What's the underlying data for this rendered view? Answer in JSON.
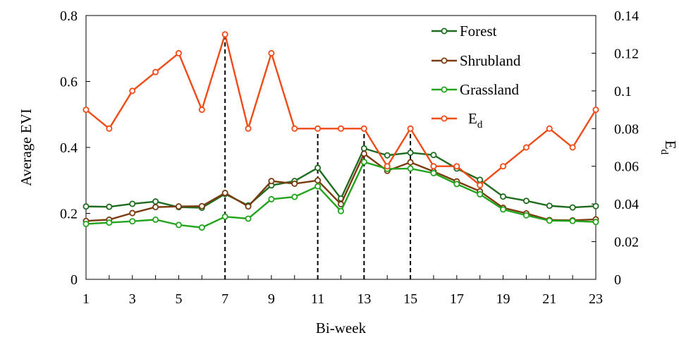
{
  "chart_data": {
    "type": "line",
    "xlabel": "Bi-week",
    "ylabel": "Average EVI",
    "y2label": "E",
    "y2label_sub": "d",
    "x": [
      1,
      2,
      3,
      4,
      5,
      6,
      7,
      8,
      9,
      10,
      11,
      12,
      13,
      14,
      15,
      16,
      17,
      18,
      19,
      20,
      21,
      22,
      23
    ],
    "xticks": [
      1,
      3,
      5,
      7,
      9,
      11,
      13,
      15,
      17,
      19,
      21,
      23
    ],
    "xlim": [
      1,
      23
    ],
    "ylim": [
      0,
      0.8
    ],
    "yticks": [
      0,
      0.2,
      0.4,
      0.6,
      0.8
    ],
    "ytick_labels": [
      "0",
      "0.2",
      "0.4",
      "0.6",
      "0.8"
    ],
    "y2lim": [
      0,
      0.14
    ],
    "y2ticks": [
      0,
      0.02,
      0.04,
      0.06,
      0.08,
      0.1,
      0.12,
      0.14
    ],
    "y2tick_labels": [
      "0",
      "0.02",
      "0.04",
      "0.06",
      "0.08",
      "0.1",
      "0.12",
      "0.14"
    ],
    "legend_position": "top-right",
    "series": [
      {
        "name": "Forest",
        "axis": "left",
        "color": "#1f6b1f",
        "values": [
          0.221,
          0.22,
          0.229,
          0.236,
          0.219,
          0.217,
          0.259,
          0.224,
          0.285,
          0.298,
          0.338,
          0.245,
          0.397,
          0.376,
          0.384,
          0.377,
          0.336,
          0.302,
          0.251,
          0.238,
          0.223,
          0.218,
          0.222
        ]
      },
      {
        "name": "Shrubland",
        "axis": "left",
        "color": "#7a3b10",
        "values": [
          0.177,
          0.181,
          0.201,
          0.219,
          0.221,
          0.222,
          0.262,
          0.221,
          0.298,
          0.29,
          0.3,
          0.228,
          0.381,
          0.329,
          0.355,
          0.327,
          0.297,
          0.267,
          0.217,
          0.2,
          0.18,
          0.179,
          0.182
        ]
      },
      {
        "name": "Grassland",
        "axis": "left",
        "color": "#22a51c",
        "values": [
          0.168,
          0.172,
          0.176,
          0.181,
          0.165,
          0.157,
          0.19,
          0.184,
          0.243,
          0.25,
          0.282,
          0.207,
          0.356,
          0.335,
          0.336,
          0.322,
          0.289,
          0.258,
          0.212,
          0.194,
          0.178,
          0.177,
          0.174
        ]
      },
      {
        "name": "E",
        "name_sub": "d",
        "axis": "right",
        "color": "#f04a16",
        "values": [
          0.09,
          0.08,
          0.1,
          0.11,
          0.12,
          0.09,
          0.13,
          0.08,
          0.12,
          0.08,
          0.08,
          0.08,
          0.08,
          0.06,
          0.08,
          0.06,
          0.06,
          0.05,
          0.06,
          0.07,
          0.08,
          0.07,
          0.09
        ]
      }
    ],
    "annotations": {
      "dashed_lines_at_x": [
        7,
        11,
        13,
        15
      ]
    }
  }
}
